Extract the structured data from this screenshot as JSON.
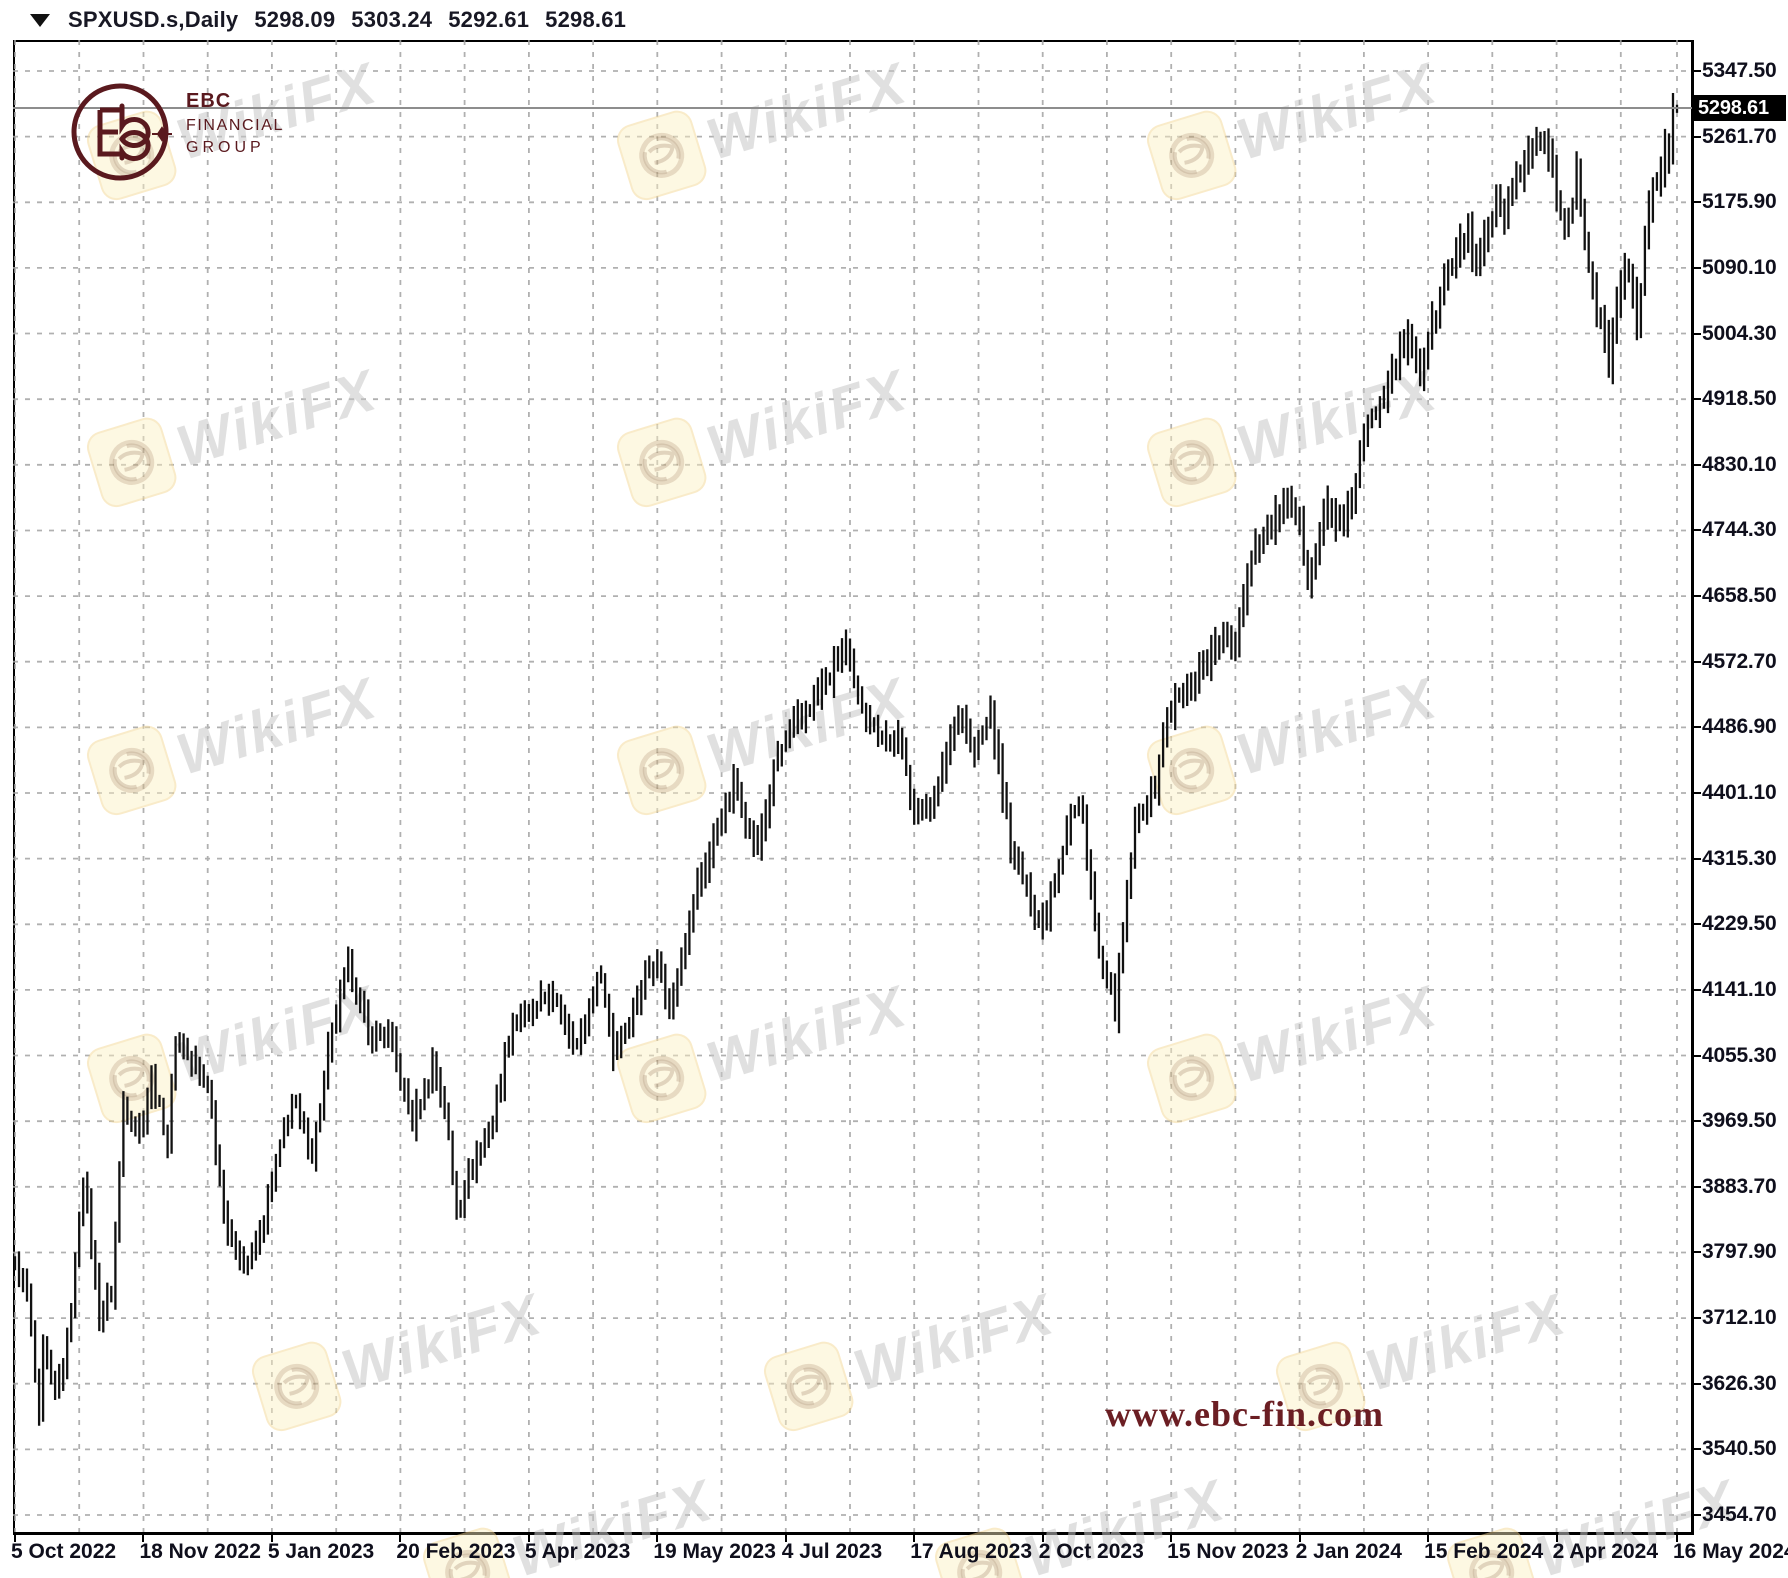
{
  "title_bar": {
    "symbol_period": "SPXUSD.s,Daily",
    "open": "5298.09",
    "high": "5303.24",
    "low": "5292.61",
    "close": "5298.61"
  },
  "logo": {
    "line1": "EBC",
    "line2": "FINANCIAL",
    "line3": "GROUP"
  },
  "website": "www.ebc-fin.com",
  "watermark": {
    "text": "WikiFX"
  },
  "price_tag": "5298.61",
  "colors": {
    "background": "#ffffff",
    "bars": "#111111",
    "grid": "#a2a2a2",
    "axis_text": "#0f0f1c",
    "price_line": "#8d8d8d",
    "price_tag_bg": "#000000",
    "price_tag_text": "#ffffff",
    "ebc_maroon": "#5a191e",
    "website_maroon": "#6b1e23",
    "watermark_gray": "#c7c7c7",
    "watermark_tile": "#faeec1"
  },
  "chart_data": {
    "type": "ohlc-bar",
    "symbol": "SPXUSD.s",
    "timeframe": "Daily",
    "title": "SPXUSD.s,Daily 5298.09 5303.24 5292.61 5298.61",
    "last": {
      "open": 5298.09,
      "high": 5303.24,
      "low": 5292.61,
      "close": 5298.61
    },
    "ylim": [
      3432.7,
      5388.1
    ],
    "grid": "dashed",
    "y_axis_labels": [
      "5347.50",
      "5261.70",
      "5175.90",
      "5090.10",
      "5004.30",
      "4918.50",
      "4830.10",
      "4744.30",
      "4658.50",
      "4572.70",
      "4486.90",
      "4401.10",
      "4315.30",
      "4229.50",
      "4141.10",
      "4055.30",
      "3969.50",
      "3883.70",
      "3797.90",
      "3712.10",
      "3626.30",
      "3540.50",
      "3454.70"
    ],
    "x_labels": [
      "5 Oct 2022",
      "18 Nov 2022",
      "5 Jan 2023",
      "20 Feb 2023",
      "5 Apr 2023",
      "19 May 2023",
      "4 Jul 2023",
      "17 Aug 2023",
      "2 Oct 2023",
      "15 Nov 2023",
      "2 Jan 2024",
      "15 Feb 2024",
      "2 Apr 2024",
      "16 May 2024"
    ],
    "x_label_bar_indices": [
      0,
      32,
      64,
      96,
      128,
      160,
      192,
      224,
      256,
      288,
      320,
      352,
      384,
      414
    ],
    "grid_bar_step": 16,
    "bars_total": 415,
    "wiggle_pct": 0.005,
    "range_pct": 0.0042,
    "anchors": [
      [
        0,
        3783
      ],
      [
        3,
        3744
      ],
      [
        6,
        3577
      ],
      [
        7,
        3669
      ],
      [
        10,
        3612
      ],
      [
        13,
        3677
      ],
      [
        17,
        3901
      ],
      [
        21,
        3719
      ],
      [
        24,
        3748
      ],
      [
        27,
        3993
      ],
      [
        31,
        3958
      ],
      [
        34,
        4027
      ],
      [
        38,
        3946
      ],
      [
        40,
        4080
      ],
      [
        48,
        4020
      ],
      [
        53,
        3822
      ],
      [
        58,
        3783
      ],
      [
        61,
        3824
      ],
      [
        64,
        3892
      ],
      [
        69,
        3999
      ],
      [
        74,
        3928
      ],
      [
        78,
        4060
      ],
      [
        83,
        4180
      ],
      [
        88,
        4081
      ],
      [
        93,
        4090
      ],
      [
        99,
        3970
      ],
      [
        104,
        4045
      ],
      [
        107,
        3992
      ],
      [
        110,
        3855
      ],
      [
        114,
        3916
      ],
      [
        119,
        3971
      ],
      [
        124,
        4109
      ],
      [
        128,
        4105
      ],
      [
        133,
        4137
      ],
      [
        140,
        4071
      ],
      [
        146,
        4167
      ],
      [
        149,
        4061
      ],
      [
        154,
        4124
      ],
      [
        160,
        4192
      ],
      [
        163,
        4115
      ],
      [
        170,
        4282
      ],
      [
        179,
        4410
      ],
      [
        185,
        4329
      ],
      [
        190,
        4450
      ],
      [
        197,
        4510
      ],
      [
        203,
        4554
      ],
      [
        207,
        4590
      ],
      [
        209,
        4537
      ],
      [
        215,
        4478
      ],
      [
        220,
        4468
      ],
      [
        225,
        4370
      ],
      [
        230,
        4406
      ],
      [
        235,
        4516
      ],
      [
        239,
        4451
      ],
      [
        243,
        4505
      ],
      [
        248,
        4330
      ],
      [
        252,
        4274
      ],
      [
        256,
        4229
      ],
      [
        263,
        4376
      ],
      [
        266,
        4373
      ],
      [
        270,
        4186
      ],
      [
        274,
        4117
      ],
      [
        279,
        4358
      ],
      [
        284,
        4415
      ],
      [
        287,
        4503
      ],
      [
        294,
        4559
      ],
      [
        299,
        4594
      ],
      [
        304,
        4604
      ],
      [
        308,
        4719
      ],
      [
        317,
        4783
      ],
      [
        320,
        4743
      ],
      [
        322,
        4688
      ],
      [
        327,
        4780
      ],
      [
        331,
        4739
      ],
      [
        336,
        4868
      ],
      [
        343,
        4958
      ],
      [
        347,
        4997
      ],
      [
        350,
        4953
      ],
      [
        357,
        5087
      ],
      [
        362,
        5137
      ],
      [
        364,
        5078
      ],
      [
        369,
        5175
      ],
      [
        371,
        5150
      ],
      [
        376,
        5241
      ],
      [
        381,
        5254
      ],
      [
        386,
        5147
      ],
      [
        389,
        5209
      ],
      [
        393,
        5061
      ],
      [
        397,
        4967
      ],
      [
        401,
        5100
      ],
      [
        404,
        5018
      ],
      [
        406,
        5127
      ],
      [
        408,
        5188
      ],
      [
        410,
        5222
      ],
      [
        412,
        5247
      ],
      [
        413,
        5308
      ],
      [
        414,
        5298.61
      ]
    ]
  }
}
